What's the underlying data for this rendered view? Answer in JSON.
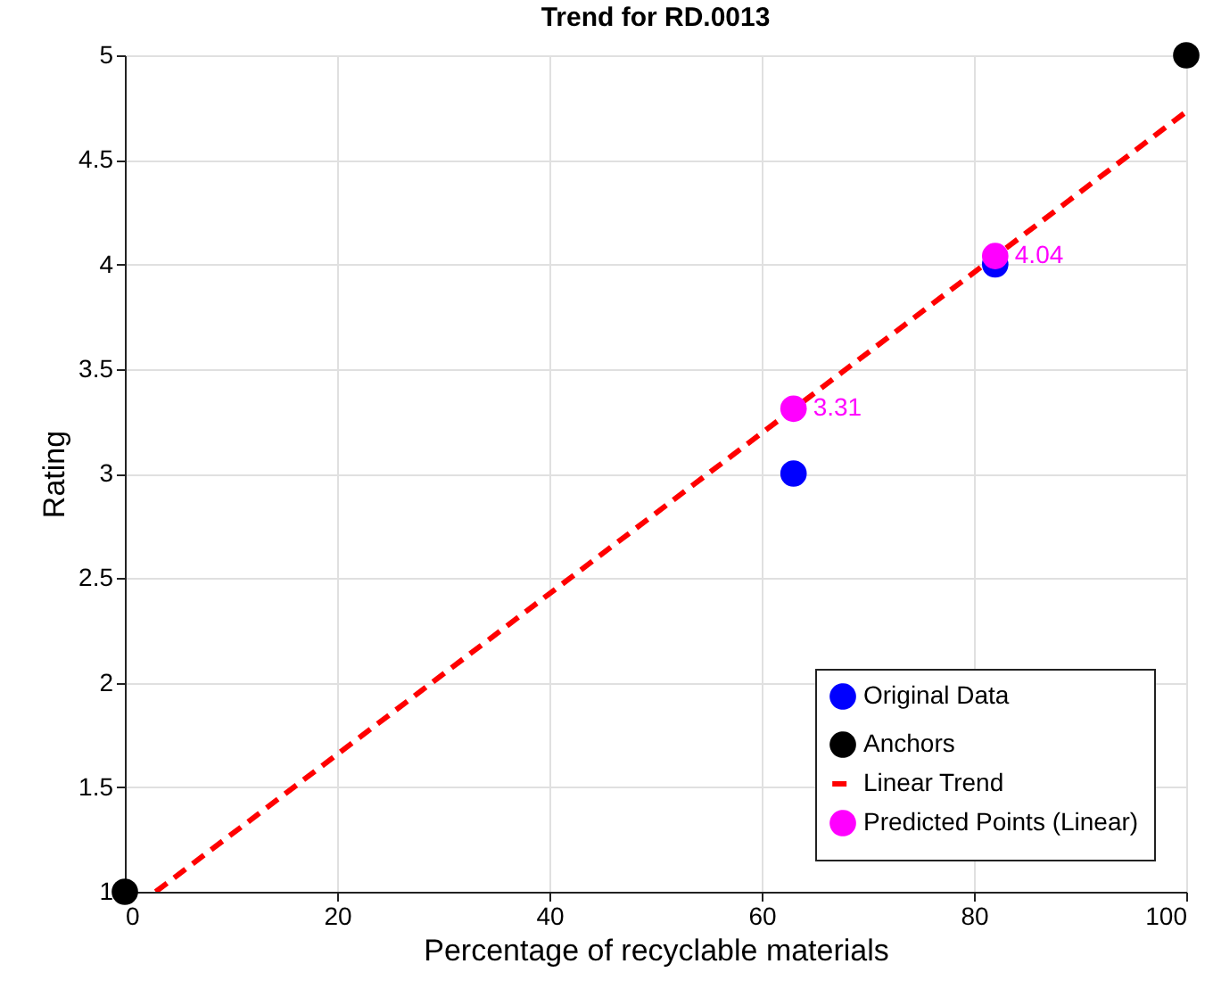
{
  "chart_data": {
    "type": "scatter",
    "title": "Trend for RD.0013",
    "xlabel": "Percentage of recyclable materials",
    "ylabel": "Rating",
    "xlim": [
      0,
      100
    ],
    "xticks": [
      0,
      20,
      40,
      60,
      80,
      100
    ],
    "ylim": [
      1,
      5
    ],
    "yticks": [
      1,
      1.5,
      2,
      2.5,
      3,
      3.5,
      4,
      4.5,
      5
    ],
    "grid": true,
    "legend": "bottom right",
    "marker": "circle",
    "series": [
      {
        "name": "Original Data",
        "color": "#0000ff",
        "x": [
          63,
          82
        ],
        "values": [
          3,
          4
        ]
      },
      {
        "name": "Anchors",
        "color": "#000000",
        "x": [
          0,
          100
        ],
        "values": [
          1,
          5
        ]
      },
      {
        "name": "Linear Trend",
        "type": "line",
        "color": "#ff0000",
        "line_style": "dashed",
        "marker": "none",
        "x": [
          2.9,
          100
        ],
        "values": [
          1,
          4.73
        ]
      },
      {
        "name": "Predicted Points (Linear)",
        "color": "#ff00ff",
        "x": [
          63,
          82
        ],
        "values": [
          3.31,
          4.04
        ],
        "value_labels": [
          "3.31",
          "4.04"
        ]
      }
    ]
  }
}
